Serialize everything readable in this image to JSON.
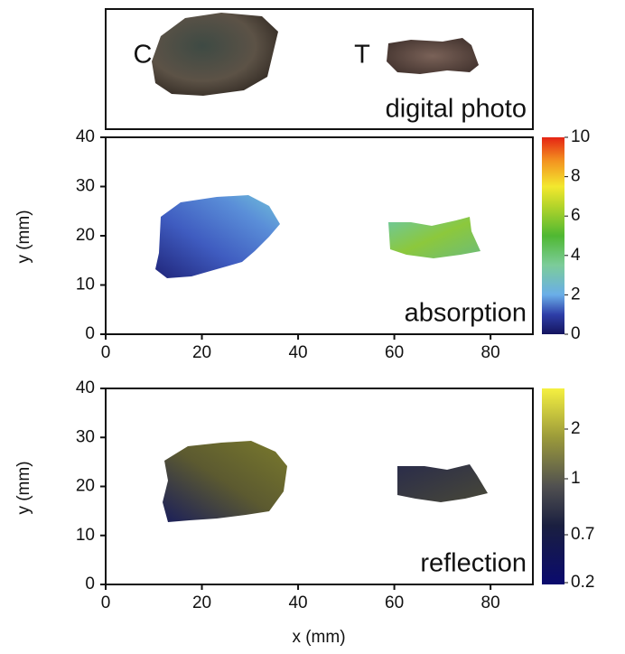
{
  "photo_panel": {
    "labels": [
      "C",
      "T"
    ],
    "title": "digital photo"
  },
  "absorption_panel": {
    "title": "absorption",
    "y_label": "y (mm)",
    "xlim": [
      0,
      88.8
    ],
    "ylim": [
      0,
      40
    ],
    "xticks": [
      0,
      20,
      40,
      60,
      80
    ],
    "yticks": [
      0,
      10,
      20,
      30,
      40
    ],
    "colorbar_lim": [
      0,
      10
    ],
    "colorbar_ticks": [
      0,
      2,
      4,
      6,
      8,
      10
    ]
  },
  "reflection_panel": {
    "title": "reflection",
    "y_label": "y (mm)",
    "x_label": "x (mm)",
    "xlim": [
      0,
      88.8
    ],
    "ylim": [
      0,
      40
    ],
    "xticks": [
      0,
      20,
      40,
      60,
      80
    ],
    "yticks": [
      0,
      10,
      20,
      30,
      40
    ],
    "colorbar_ticks": [
      0.2,
      0.7,
      1,
      2
    ]
  }
}
